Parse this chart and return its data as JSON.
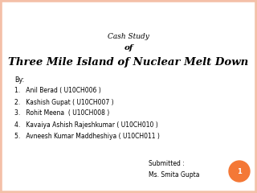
{
  "bg_color": "#ffffff",
  "border_color": "#f4c0a8",
  "border_lw": 4,
  "title_line1": "Cash Study",
  "title_line2": "of",
  "title_line3": "Three Mile Island of Nuclear Melt Down",
  "by_label": "By:",
  "names": [
    "1.   Anil Berad ( U10CH006 )",
    "2.   Kashish Gupat ( U10CH007 )",
    "3.   Rohit Meena  ( U10CH008 )",
    "4.   Kavaiya Ashish Rajeshkumar ( U10CH010 )",
    "5.   Avneesh Kumar Maddheshiya ( U10CH011 )"
  ],
  "submitted_label": "Submitted :",
  "submitted_to": "Ms. Smita Gupta",
  "page_num": "1",
  "page_circle_color": "#f47836",
  "page_num_color": "#ffffff",
  "title1_fontsize": 6.5,
  "title2_fontsize": 7.5,
  "title3_fontsize": 9.5,
  "body_fontsize": 5.5,
  "by_fontsize": 5.8,
  "submit_fontsize": 5.5,
  "page_fontsize": 6
}
